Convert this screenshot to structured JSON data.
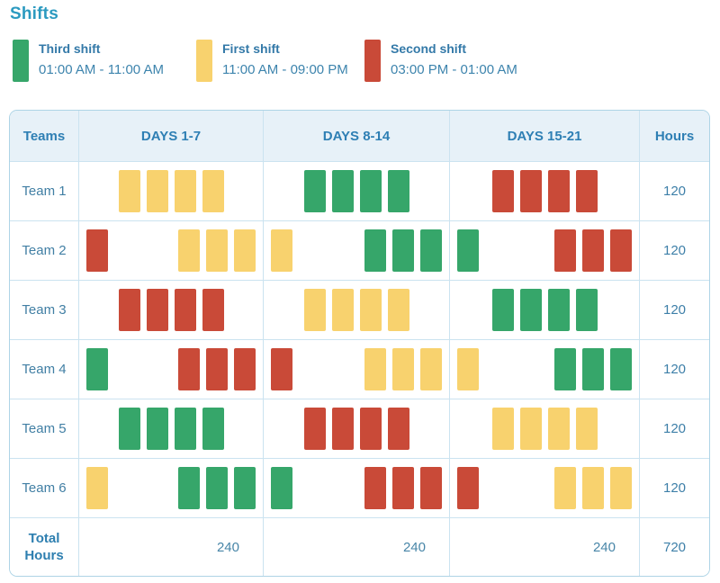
{
  "chart_data": {
    "type": "table",
    "title": "Shifts",
    "columns": [
      "Teams",
      "DAYS 1-7",
      "DAYS 8-14",
      "DAYS 15-21",
      "Hours"
    ],
    "legend": [
      {
        "shift_key": "third",
        "label": "Third shift",
        "time": "01:00 AM - 11:00 AM",
        "color": "#36a66a"
      },
      {
        "shift_key": "first",
        "label": "First shift",
        "time": "11:00 AM - 09:00 PM",
        "color": "#f8d26e"
      },
      {
        "shift_key": "second",
        "label": "Second shift",
        "time": "03:00 PM - 01:00 AM",
        "color": "#c94a38"
      }
    ],
    "rows": [
      {
        "team": "Team 1",
        "hours": "120",
        "cells": [
          {
            "layout": "center",
            "segments": [
              {
                "shift": "first",
                "count": 4
              }
            ]
          },
          {
            "layout": "center",
            "segments": [
              {
                "shift": "third",
                "count": 4
              }
            ]
          },
          {
            "layout": "center",
            "segments": [
              {
                "shift": "second",
                "count": 4
              }
            ]
          }
        ]
      },
      {
        "team": "Team 2",
        "hours": "120",
        "cells": [
          {
            "layout": "split",
            "segments": [
              {
                "shift": "second",
                "count": 1
              },
              {
                "shift": "first",
                "count": 3
              }
            ]
          },
          {
            "layout": "split",
            "segments": [
              {
                "shift": "first",
                "count": 1
              },
              {
                "shift": "third",
                "count": 3
              }
            ]
          },
          {
            "layout": "split",
            "segments": [
              {
                "shift": "third",
                "count": 1
              },
              {
                "shift": "second",
                "count": 3
              }
            ]
          }
        ]
      },
      {
        "team": "Team 3",
        "hours": "120",
        "cells": [
          {
            "layout": "center",
            "segments": [
              {
                "shift": "second",
                "count": 4
              }
            ]
          },
          {
            "layout": "center",
            "segments": [
              {
                "shift": "first",
                "count": 4
              }
            ]
          },
          {
            "layout": "center",
            "segments": [
              {
                "shift": "third",
                "count": 4
              }
            ]
          }
        ]
      },
      {
        "team": "Team 4",
        "hours": "120",
        "cells": [
          {
            "layout": "split",
            "segments": [
              {
                "shift": "third",
                "count": 1
              },
              {
                "shift": "second",
                "count": 3
              }
            ]
          },
          {
            "layout": "split",
            "segments": [
              {
                "shift": "second",
                "count": 1
              },
              {
                "shift": "first",
                "count": 3
              }
            ]
          },
          {
            "layout": "split",
            "segments": [
              {
                "shift": "first",
                "count": 1
              },
              {
                "shift": "third",
                "count": 3
              }
            ]
          }
        ]
      },
      {
        "team": "Team 5",
        "hours": "120",
        "cells": [
          {
            "layout": "center",
            "segments": [
              {
                "shift": "third",
                "count": 4
              }
            ]
          },
          {
            "layout": "center",
            "segments": [
              {
                "shift": "second",
                "count": 4
              }
            ]
          },
          {
            "layout": "center",
            "segments": [
              {
                "shift": "first",
                "count": 4
              }
            ]
          }
        ]
      },
      {
        "team": "Team 6",
        "hours": "120",
        "cells": [
          {
            "layout": "split",
            "segments": [
              {
                "shift": "first",
                "count": 1
              },
              {
                "shift": "third",
                "count": 3
              }
            ]
          },
          {
            "layout": "split",
            "segments": [
              {
                "shift": "third",
                "count": 1
              },
              {
                "shift": "second",
                "count": 3
              }
            ]
          },
          {
            "layout": "split",
            "segments": [
              {
                "shift": "second",
                "count": 1
              },
              {
                "shift": "first",
                "count": 3
              }
            ]
          }
        ]
      }
    ],
    "totals": {
      "label": "Total Hours",
      "period_totals": [
        "240",
        "240",
        "240"
      ],
      "grand_total": "720"
    }
  }
}
